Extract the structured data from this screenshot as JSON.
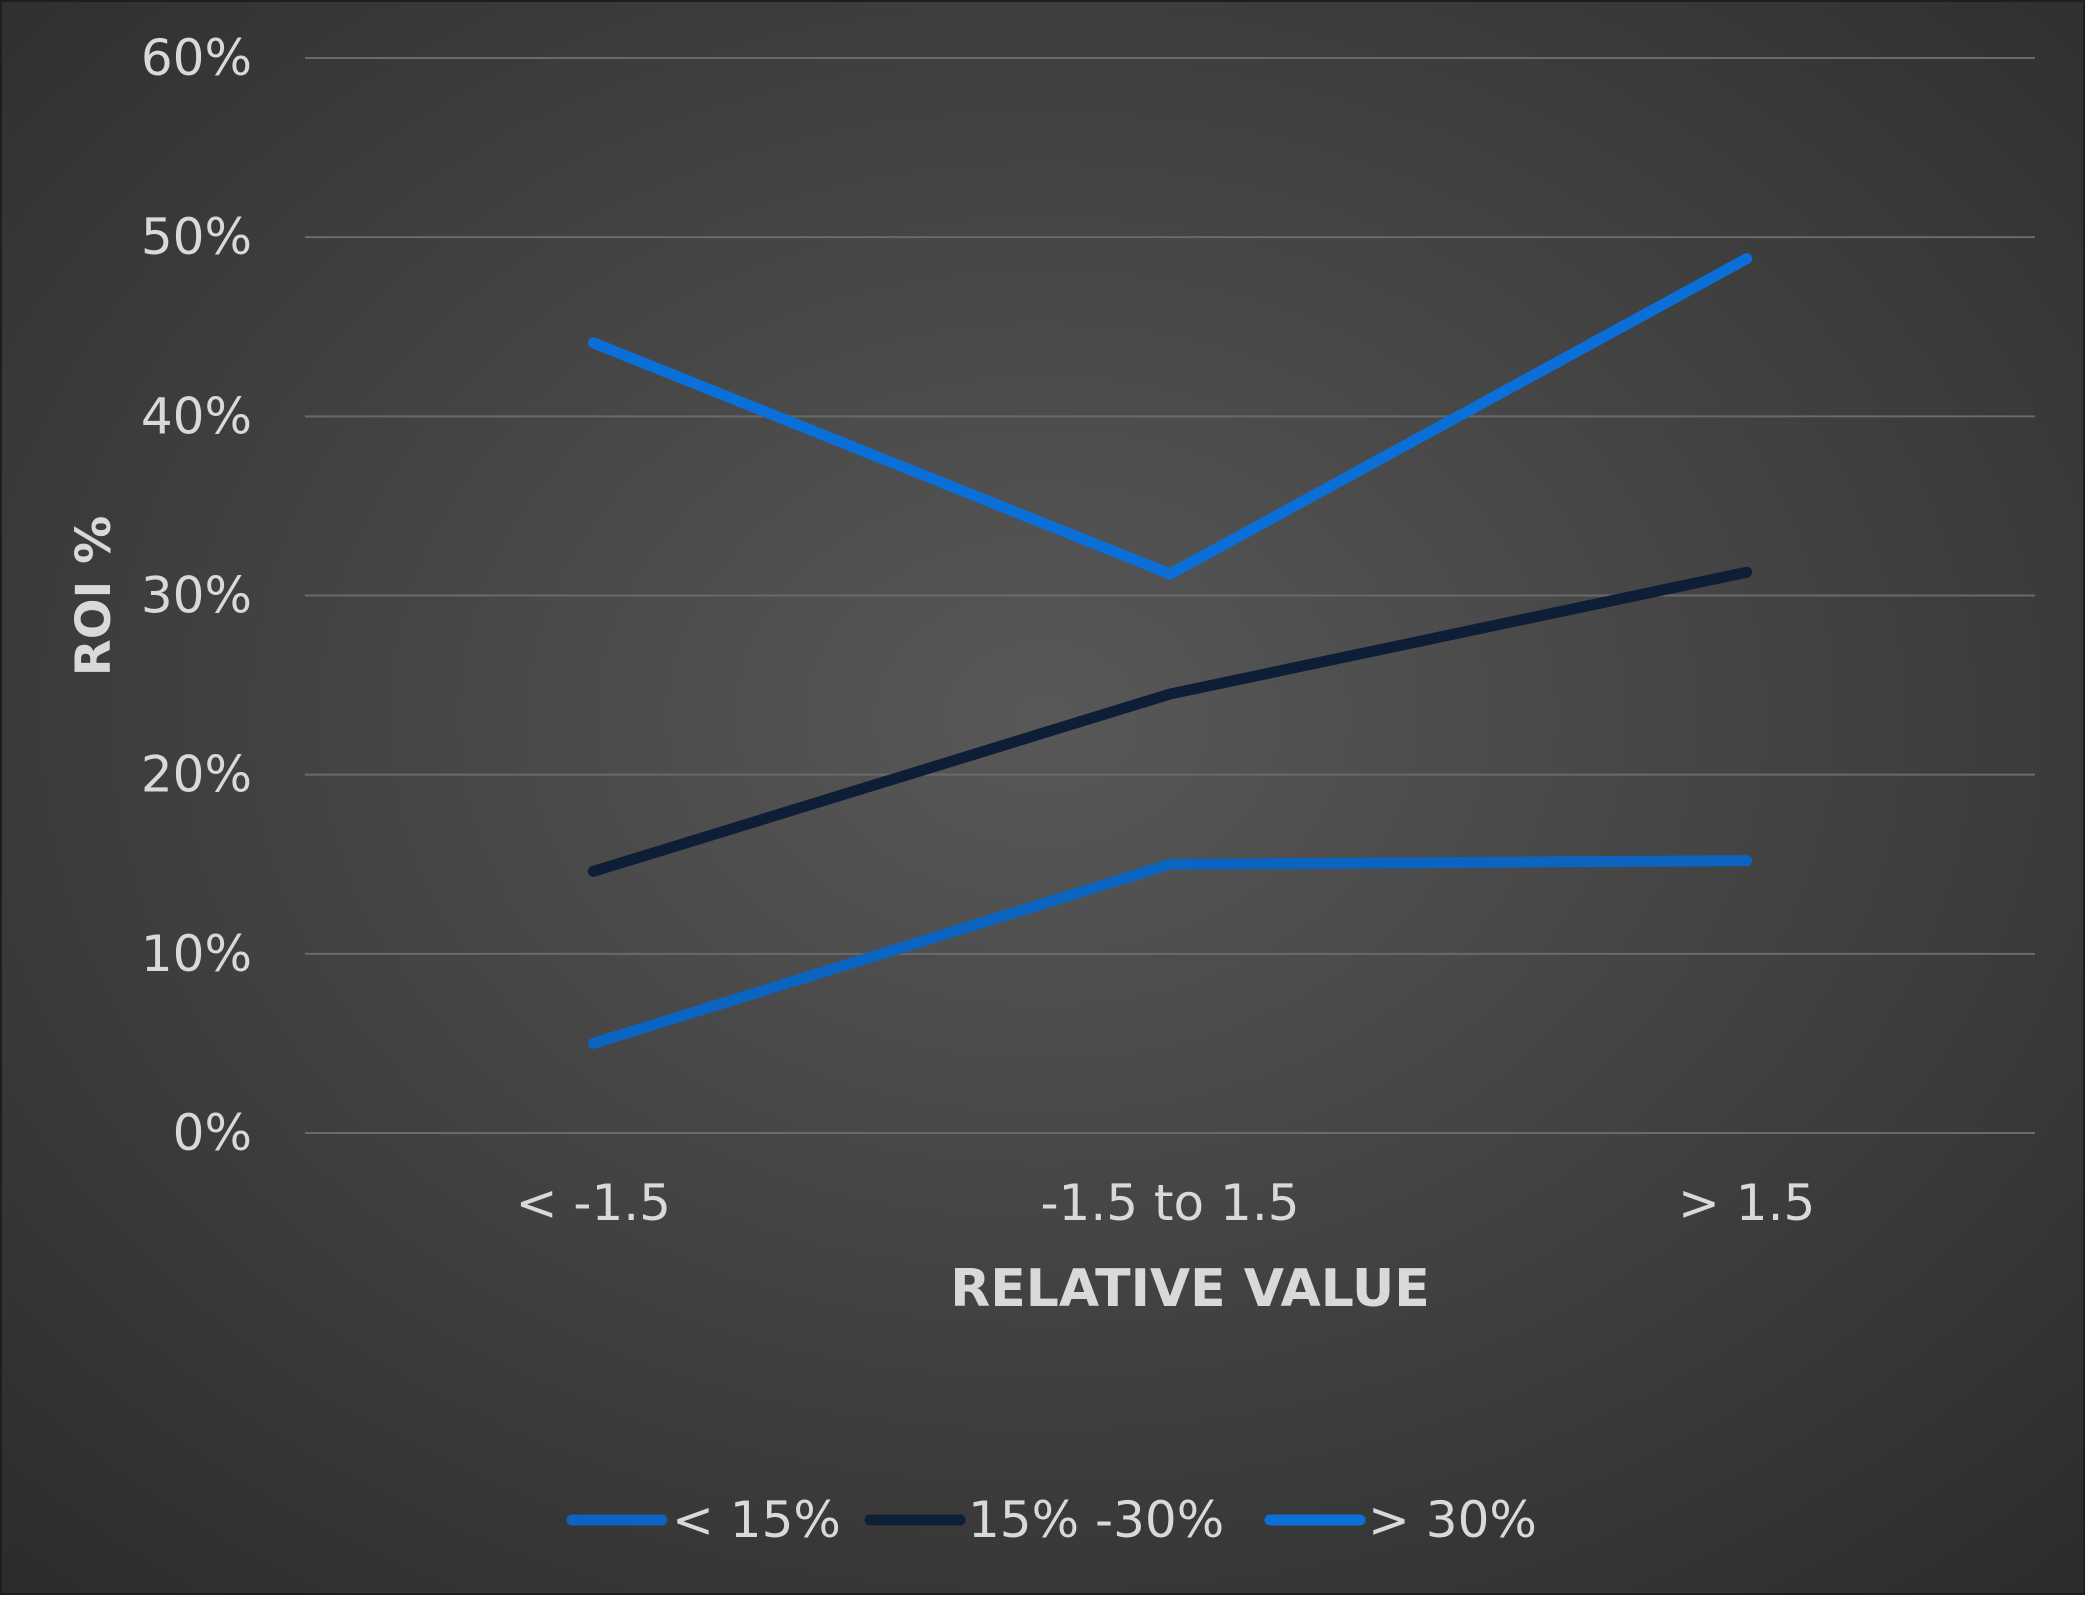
{
  "chart_data": {
    "type": "line",
    "title": "",
    "xlabel": "RELATIVE VALUE",
    "ylabel": "ROI %",
    "categories": [
      "< -1.5",
      "-1.5 to 1.5",
      "> 1.5"
    ],
    "ylim": [
      0,
      0.6
    ],
    "yticks": [
      0,
      0.1,
      0.2,
      0.3,
      0.4,
      0.5,
      0.6
    ],
    "ytick_labels": [
      "0%",
      "10%",
      "20%",
      "30%",
      "40%",
      "50%",
      "60%"
    ],
    "grid": true,
    "legend_position": "bottom",
    "background": "dark gradient",
    "series": [
      {
        "name": "< 15%",
        "values": [
          0.05,
          0.15,
          0.152
        ],
        "color": "#0a64c0"
      },
      {
        "name": "15% -30%",
        "values": [
          0.146,
          0.245,
          0.313
        ],
        "color": "#0e1e36"
      },
      {
        "name": "> 30%",
        "values": [
          0.441,
          0.312,
          0.488
        ],
        "color": "#0a6fd6"
      }
    ]
  }
}
